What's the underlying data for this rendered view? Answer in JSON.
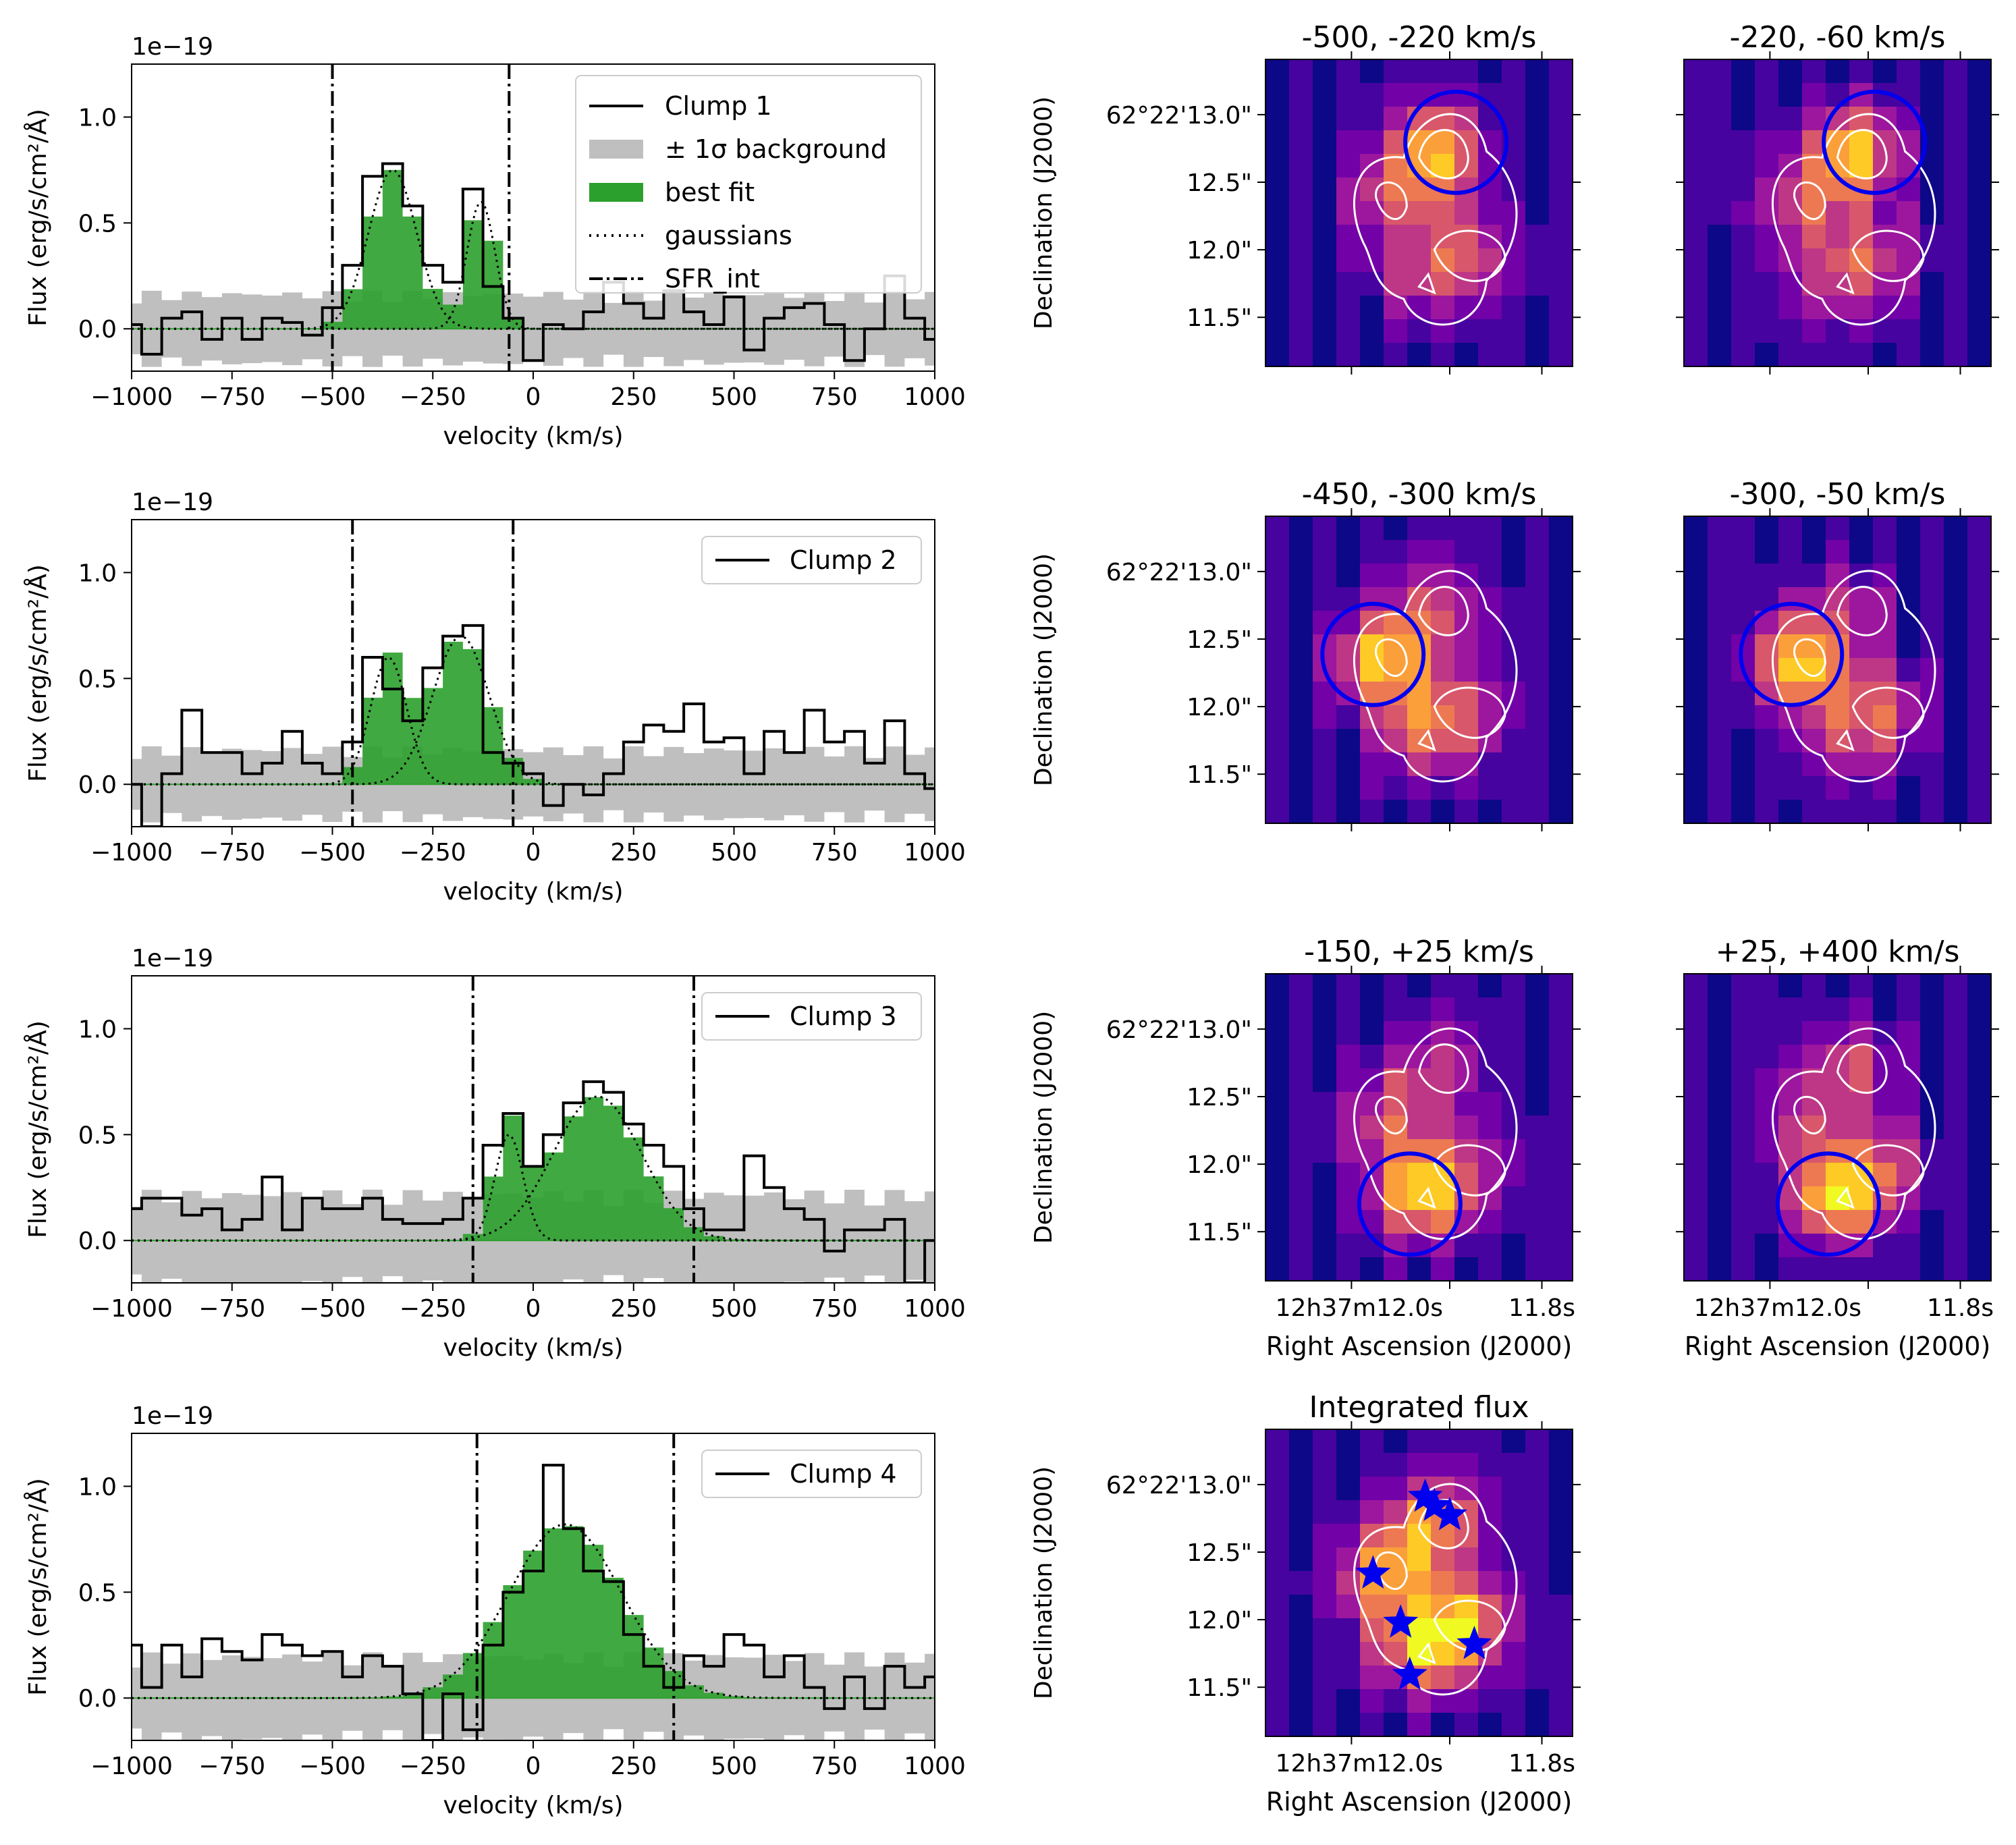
{
  "spectra": {
    "xlabel": "velocity (km/s)",
    "ylabel": "Flux (erg/s/cm²/Å)",
    "offset_text": "1e−19",
    "xticks": [
      "−1000",
      "−750",
      "−500",
      "−250",
      "0",
      "250",
      "500",
      "750",
      "1000"
    ],
    "yticks": [
      "0.0",
      "0.5",
      "1.0"
    ],
    "legend_extra": [
      "± 1σ background",
      "best fit",
      "gaussians",
      "SFR_int"
    ]
  },
  "maps": {
    "ylabel": "Declination (J2000)",
    "xlabel": "Right Ascension (J2000)",
    "ytick_labels": [
      "62°22'13.0\"",
      "12.5\"",
      "12.0\"",
      "11.5\""
    ],
    "ra_label_a": "12h37m12.0s",
    "ra_label_b": "11.8s",
    "titles": [
      "-500, -220 km/s",
      "-220, -60 km/s",
      "-450, -300 km/s",
      "-300, -50 km/s",
      "-150, +25 km/s",
      "+25, +400 km/s",
      "Integrated flux"
    ]
  },
  "colors": {
    "fit": "#2ca02c",
    "bg": "#bfbfbf",
    "circle": "#0000ee",
    "contour": "#ffffff"
  },
  "chart_data": [
    {
      "type": "line",
      "name": "Clump 1",
      "xlim": [
        -1000,
        1000
      ],
      "ylim": [
        -0.2,
        1.25
      ],
      "x": [
        -1000,
        -950,
        -900,
        -850,
        -800,
        -750,
        -700,
        -650,
        -600,
        -550,
        -500,
        -450,
        -400,
        -350,
        -300,
        -250,
        -200,
        -150,
        -100,
        -50,
        0,
        50,
        100,
        150,
        200,
        250,
        300,
        350,
        400,
        450,
        500,
        550,
        600,
        650,
        700,
        750,
        800,
        850,
        900,
        950,
        1000
      ],
      "y": [
        0.02,
        -0.12,
        0.05,
        0.08,
        -0.05,
        0.05,
        -0.05,
        0.05,
        0.03,
        -0.03,
        0.1,
        0.3,
        0.72,
        0.78,
        0.58,
        0.3,
        0.22,
        0.66,
        0.2,
        0.05,
        -0.15,
        0.02,
        0.0,
        0.08,
        0.22,
        0.12,
        0.05,
        0.18,
        0.08,
        0.02,
        0.15,
        -0.1,
        0.05,
        0.1,
        0.12,
        0.02,
        -0.15,
        0.0,
        0.25,
        0.05,
        -0.05
      ],
      "bg_sigma": 0.15,
      "gaussians": [
        [
          -350,
          0.75,
          60
        ],
        [
          -130,
          0.6,
          35
        ]
      ],
      "sfr_int": [
        -500,
        -60
      ]
    },
    {
      "type": "line",
      "name": "Clump 2",
      "xlim": [
        -1000,
        1000
      ],
      "ylim": [
        -0.2,
        1.25
      ],
      "x": [
        -1000,
        -950,
        -900,
        -850,
        -800,
        -750,
        -700,
        -650,
        -600,
        -550,
        -500,
        -450,
        -400,
        -350,
        -300,
        -250,
        -200,
        -150,
        -100,
        -50,
        0,
        50,
        100,
        150,
        200,
        250,
        300,
        350,
        400,
        450,
        500,
        550,
        600,
        650,
        700,
        750,
        800,
        850,
        900,
        950,
        1000
      ],
      "y": [
        0.0,
        -0.2,
        0.05,
        0.35,
        0.15,
        0.15,
        0.05,
        0.1,
        0.25,
        0.1,
        0.05,
        0.2,
        0.6,
        0.45,
        0.3,
        0.55,
        0.7,
        0.75,
        0.15,
        0.1,
        0.05,
        -0.1,
        0.0,
        -0.05,
        0.05,
        0.2,
        0.28,
        0.25,
        0.38,
        0.2,
        0.22,
        0.05,
        0.25,
        0.15,
        0.35,
        0.2,
        0.25,
        0.1,
        0.3,
        0.05,
        -0.02
      ],
      "bg_sigma": 0.15,
      "gaussians": [
        [
          -360,
          0.6,
          45
        ],
        [
          -180,
          0.7,
          70
        ]
      ],
      "sfr_int": [
        -450,
        -50
      ]
    },
    {
      "type": "line",
      "name": "Clump 3",
      "xlim": [
        -1000,
        1000
      ],
      "ylim": [
        -0.2,
        1.25
      ],
      "x": [
        -1000,
        -950,
        -900,
        -850,
        -800,
        -750,
        -700,
        -650,
        -600,
        -550,
        -500,
        -450,
        -400,
        -350,
        -300,
        -250,
        -200,
        -150,
        -100,
        -50,
        0,
        50,
        100,
        150,
        200,
        250,
        300,
        350,
        400,
        450,
        500,
        550,
        600,
        650,
        700,
        750,
        800,
        850,
        900,
        950,
        1000
      ],
      "y": [
        0.15,
        0.2,
        0.2,
        0.12,
        0.15,
        0.05,
        0.1,
        0.3,
        0.05,
        0.2,
        0.15,
        0.15,
        0.2,
        0.1,
        0.08,
        0.08,
        0.1,
        0.2,
        0.45,
        0.6,
        0.35,
        0.5,
        0.65,
        0.75,
        0.7,
        0.55,
        0.45,
        0.35,
        0.15,
        0.05,
        0.05,
        0.4,
        0.25,
        0.15,
        0.1,
        -0.05,
        0.05,
        0.05,
        0.1,
        -0.2,
        0.0
      ],
      "bg_sigma": 0.2,
      "gaussians": [
        [
          -60,
          0.5,
          35
        ],
        [
          160,
          0.68,
          110
        ]
      ],
      "sfr_int": [
        -150,
        400
      ]
    },
    {
      "type": "line",
      "name": "Clump 4",
      "xlim": [
        -1000,
        1000
      ],
      "ylim": [
        -0.2,
        1.25
      ],
      "x": [
        -1000,
        -950,
        -900,
        -850,
        -800,
        -750,
        -700,
        -650,
        -600,
        -550,
        -500,
        -450,
        -400,
        -350,
        -300,
        -250,
        -200,
        -150,
        -100,
        -50,
        0,
        50,
        100,
        150,
        200,
        250,
        300,
        350,
        400,
        450,
        500,
        550,
        600,
        650,
        700,
        750,
        800,
        850,
        900,
        950,
        1000
      ],
      "y": [
        0.25,
        0.05,
        0.25,
        0.1,
        0.28,
        0.22,
        0.18,
        0.3,
        0.25,
        0.2,
        0.22,
        0.1,
        0.2,
        0.15,
        0.02,
        -0.2,
        0.02,
        -0.15,
        0.25,
        0.5,
        0.6,
        1.1,
        0.8,
        0.6,
        0.55,
        0.3,
        0.15,
        0.05,
        0.2,
        0.15,
        0.3,
        0.25,
        0.1,
        0.2,
        0.05,
        -0.05,
        0.1,
        -0.05,
        0.15,
        0.05,
        0.1
      ],
      "bg_sigma": 0.18,
      "gaussians": [
        [
          80,
          0.82,
          140
        ]
      ],
      "sfr_int": [
        -140,
        350
      ]
    }
  ]
}
